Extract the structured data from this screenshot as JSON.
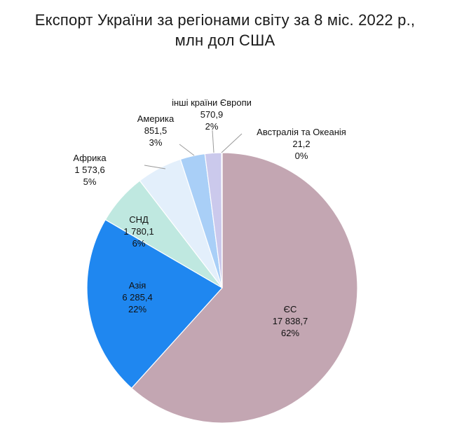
{
  "title_line1": "Експорт України за регіонами світу за 8 міс. 2022 р.,",
  "title_line2": "млн дол США",
  "chart_data": {
    "type": "pie",
    "title": "Експорт України за регіонами світу за 8 міс. 2022 р., млн дол США",
    "start_angle_deg": 0,
    "direction": "clockwise",
    "slices": [
      {
        "name": "ЄС",
        "value": 17838.7,
        "value_label": "17 838,7",
        "pct": "62%",
        "color": "#c3a6b2"
      },
      {
        "name": "Азія",
        "value": 6285.4,
        "value_label": "6 285,4",
        "pct": "22%",
        "color": "#1f87f0"
      },
      {
        "name": "СНД",
        "value": 1780.1,
        "value_label": "1 780,1",
        "pct": "6%",
        "color": "#bfe8e0"
      },
      {
        "name": "Африка",
        "value": 1573.6,
        "value_label": "1 573,6",
        "pct": "5%",
        "color": "#e3effb"
      },
      {
        "name": "Америка",
        "value": 851.5,
        "value_label": "851,5",
        "pct": "3%",
        "color": "#a9cff7"
      },
      {
        "name": "інші країни Європи",
        "value": 570.9,
        "value_label": "570,9",
        "pct": "2%",
        "color": "#cbc9ec"
      },
      {
        "name": "Австралія та Океанія",
        "value": 21.2,
        "value_label": "21,2",
        "pct": "0%",
        "color": "#a7a3d2"
      }
    ]
  }
}
